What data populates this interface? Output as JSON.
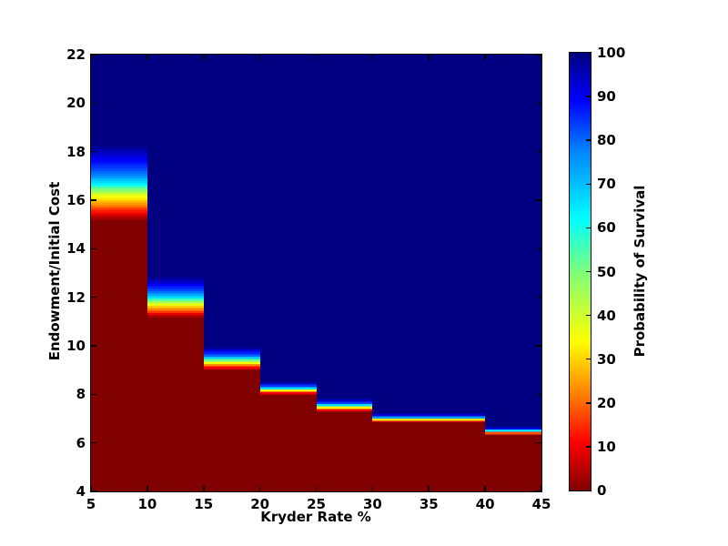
{
  "figure": {
    "background": "#ffffff"
  },
  "chart_data": {
    "type": "heatmap",
    "title": "",
    "xlabel": "Kryder Rate %",
    "ylabel": "Endowment/Initial Cost",
    "xlim": [
      5,
      45
    ],
    "ylim": [
      4,
      22
    ],
    "xticks": [
      5,
      10,
      15,
      20,
      25,
      30,
      35,
      40,
      45
    ],
    "yticks": [
      4,
      6,
      8,
      10,
      12,
      14,
      16,
      18,
      20,
      22
    ],
    "grid": false,
    "value_below_band": 0,
    "value_above_band": 100,
    "description": "Probability of Survival = 0 (dark red) below each column's transition band and 100 (dark blue) above it; a steep color gradient spans transition_low to transition_high (Endowment/Initial Cost units).",
    "y_resolution": 0.1,
    "columns": [
      {
        "x": [
          5,
          10
        ],
        "transition_low": 15.15,
        "transition_high": 18.3
      },
      {
        "x": [
          10,
          15
        ],
        "transition_low": 11.15,
        "transition_high": 12.85
      },
      {
        "x": [
          15,
          20
        ],
        "transition_low": 9.0,
        "transition_high": 9.95
      },
      {
        "x": [
          20,
          25
        ],
        "transition_low": 8.0,
        "transition_high": 8.5
      },
      {
        "x": [
          25,
          30
        ],
        "transition_low": 7.3,
        "transition_high": 7.8
      },
      {
        "x": [
          30,
          40
        ],
        "transition_low": 6.85,
        "transition_high": 7.2
      },
      {
        "x": [
          40,
          45
        ],
        "transition_low": 6.35,
        "transition_high": 6.65
      }
    ],
    "band_profile": [
      [
        0.0,
        "#800000"
      ],
      [
        0.11,
        "#ff0000"
      ],
      [
        0.2,
        "#ff8000"
      ],
      [
        0.31,
        "#ffff00"
      ],
      [
        0.41,
        "#7dff7a"
      ],
      [
        0.47,
        "#00ffff"
      ],
      [
        0.6,
        "#0080ff"
      ],
      [
        0.78,
        "#0000ff"
      ],
      [
        1.0,
        "#000080"
      ]
    ],
    "colorbar": {
      "label": "Probability of Survival",
      "min": 0,
      "max": 100,
      "ticks": [
        0,
        10,
        20,
        30,
        40,
        50,
        60,
        70,
        80,
        90,
        100
      ],
      "colormap": "jet (reversed)",
      "palette": [
        [
          0,
          "#800000"
        ],
        [
          11,
          "#ff0000"
        ],
        [
          22,
          "#ff8000"
        ],
        [
          34,
          "#ffff00"
        ],
        [
          50,
          "#7dff7a"
        ],
        [
          62,
          "#00ffff"
        ],
        [
          78,
          "#0080ff"
        ],
        [
          89,
          "#0000ff"
        ],
        [
          100,
          "#000080"
        ]
      ]
    }
  }
}
